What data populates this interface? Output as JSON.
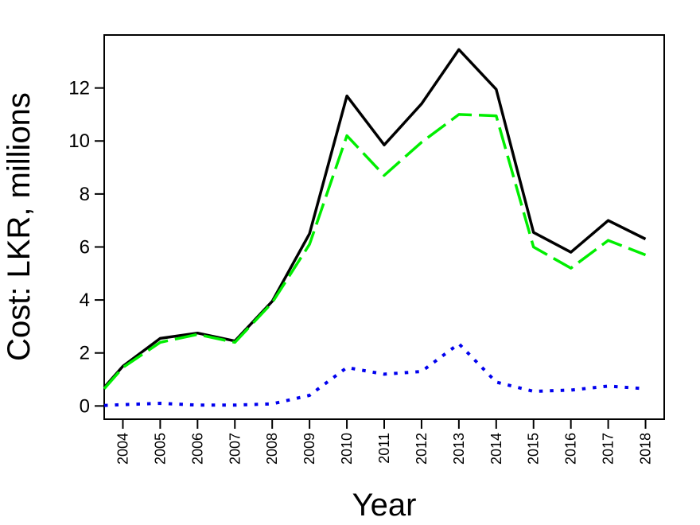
{
  "chart_data": {
    "type": "line",
    "xlabel": "Year",
    "ylabel": "Cost: LKR, millions",
    "x": [
      "2004",
      "2005",
      "2006",
      "2007",
      "2008",
      "2009",
      "2010",
      "2011",
      "2012",
      "2013",
      "2014",
      "2015",
      "2016",
      "2017",
      "2018"
    ],
    "xlim": [
      2003.5,
      2018.5
    ],
    "ylim": [
      -0.5,
      14.0
    ],
    "yticks": [
      0,
      2,
      4,
      6,
      8,
      10,
      12
    ],
    "grid": false,
    "legend": "none",
    "series": [
      {
        "style": "solid",
        "color": "#000000",
        "x": [
          2003.5,
          2004,
          2005,
          2006,
          2007,
          2008,
          2009,
          2010,
          2011,
          2012,
          2013,
          2014,
          2015,
          2016,
          2017,
          2018
        ],
        "values": [
          0.7,
          1.5,
          2.55,
          2.75,
          2.45,
          3.95,
          6.5,
          11.7,
          9.85,
          11.4,
          13.45,
          11.95,
          6.55,
          5.8,
          7.0,
          6.3
        ]
      },
      {
        "style": "dashed",
        "color": "#00ee00",
        "x": [
          2003.5,
          2004,
          2005,
          2006,
          2007,
          2008,
          2009,
          2010,
          2011,
          2012,
          2013,
          2014,
          2015,
          2016,
          2017,
          2018
        ],
        "values": [
          0.65,
          1.45,
          2.4,
          2.7,
          2.4,
          3.9,
          6.1,
          10.2,
          8.7,
          9.95,
          11.0,
          10.95,
          6.0,
          5.2,
          6.25,
          5.7
        ]
      },
      {
        "style": "dotted",
        "color": "#0000ee",
        "x": [
          2003.5,
          2004,
          2005,
          2006,
          2007,
          2008,
          2009,
          2010,
          2011,
          2012,
          2013,
          2014,
          2015,
          2016,
          2017,
          2018
        ],
        "values": [
          0.02,
          0.05,
          0.1,
          0.03,
          0.03,
          0.08,
          0.4,
          1.45,
          1.2,
          1.3,
          2.35,
          0.9,
          0.55,
          0.6,
          0.75,
          0.65
        ]
      }
    ]
  }
}
